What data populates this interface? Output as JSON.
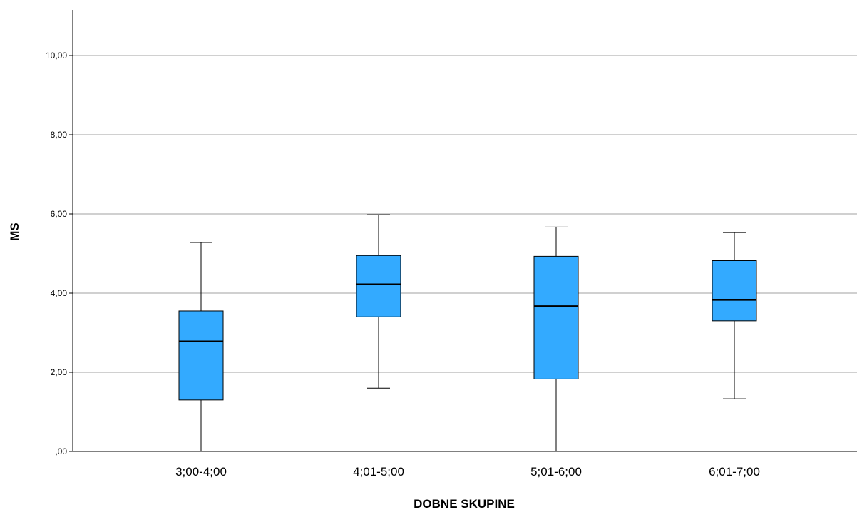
{
  "chart_data": {
    "type": "box",
    "title": "",
    "xlabel": "DOBNE SKUPINE",
    "ylabel": "MS",
    "ylim": [
      0,
      11
    ],
    "grid": true,
    "yticks": [
      {
        "value": 0,
        "label": ",00"
      },
      {
        "value": 2,
        "label": "2,00"
      },
      {
        "value": 4,
        "label": "4,00"
      },
      {
        "value": 6,
        "label": "6,00"
      },
      {
        "value": 8,
        "label": "8,00"
      },
      {
        "value": 10,
        "label": "10,00"
      }
    ],
    "categories": [
      "3;00-4;00",
      "4;01-5;00",
      "5;01-6;00",
      "6;01-7;00"
    ],
    "boxes": [
      {
        "min": 0.0,
        "q1": 1.3,
        "median": 2.78,
        "q3": 3.55,
        "max": 5.28
      },
      {
        "min": 1.6,
        "q1": 3.4,
        "median": 4.22,
        "q3": 4.95,
        "max": 5.98
      },
      {
        "min": 0.0,
        "q1": 1.83,
        "median": 3.67,
        "q3": 4.93,
        "max": 5.67
      },
      {
        "min": 1.33,
        "q1": 3.3,
        "median": 3.83,
        "q3": 4.82,
        "max": 5.53
      }
    ],
    "colors": {
      "box_fill": "#33aaff",
      "box_stroke": "#000000",
      "grid": "#b4b4b4",
      "axis": "#000000"
    }
  }
}
